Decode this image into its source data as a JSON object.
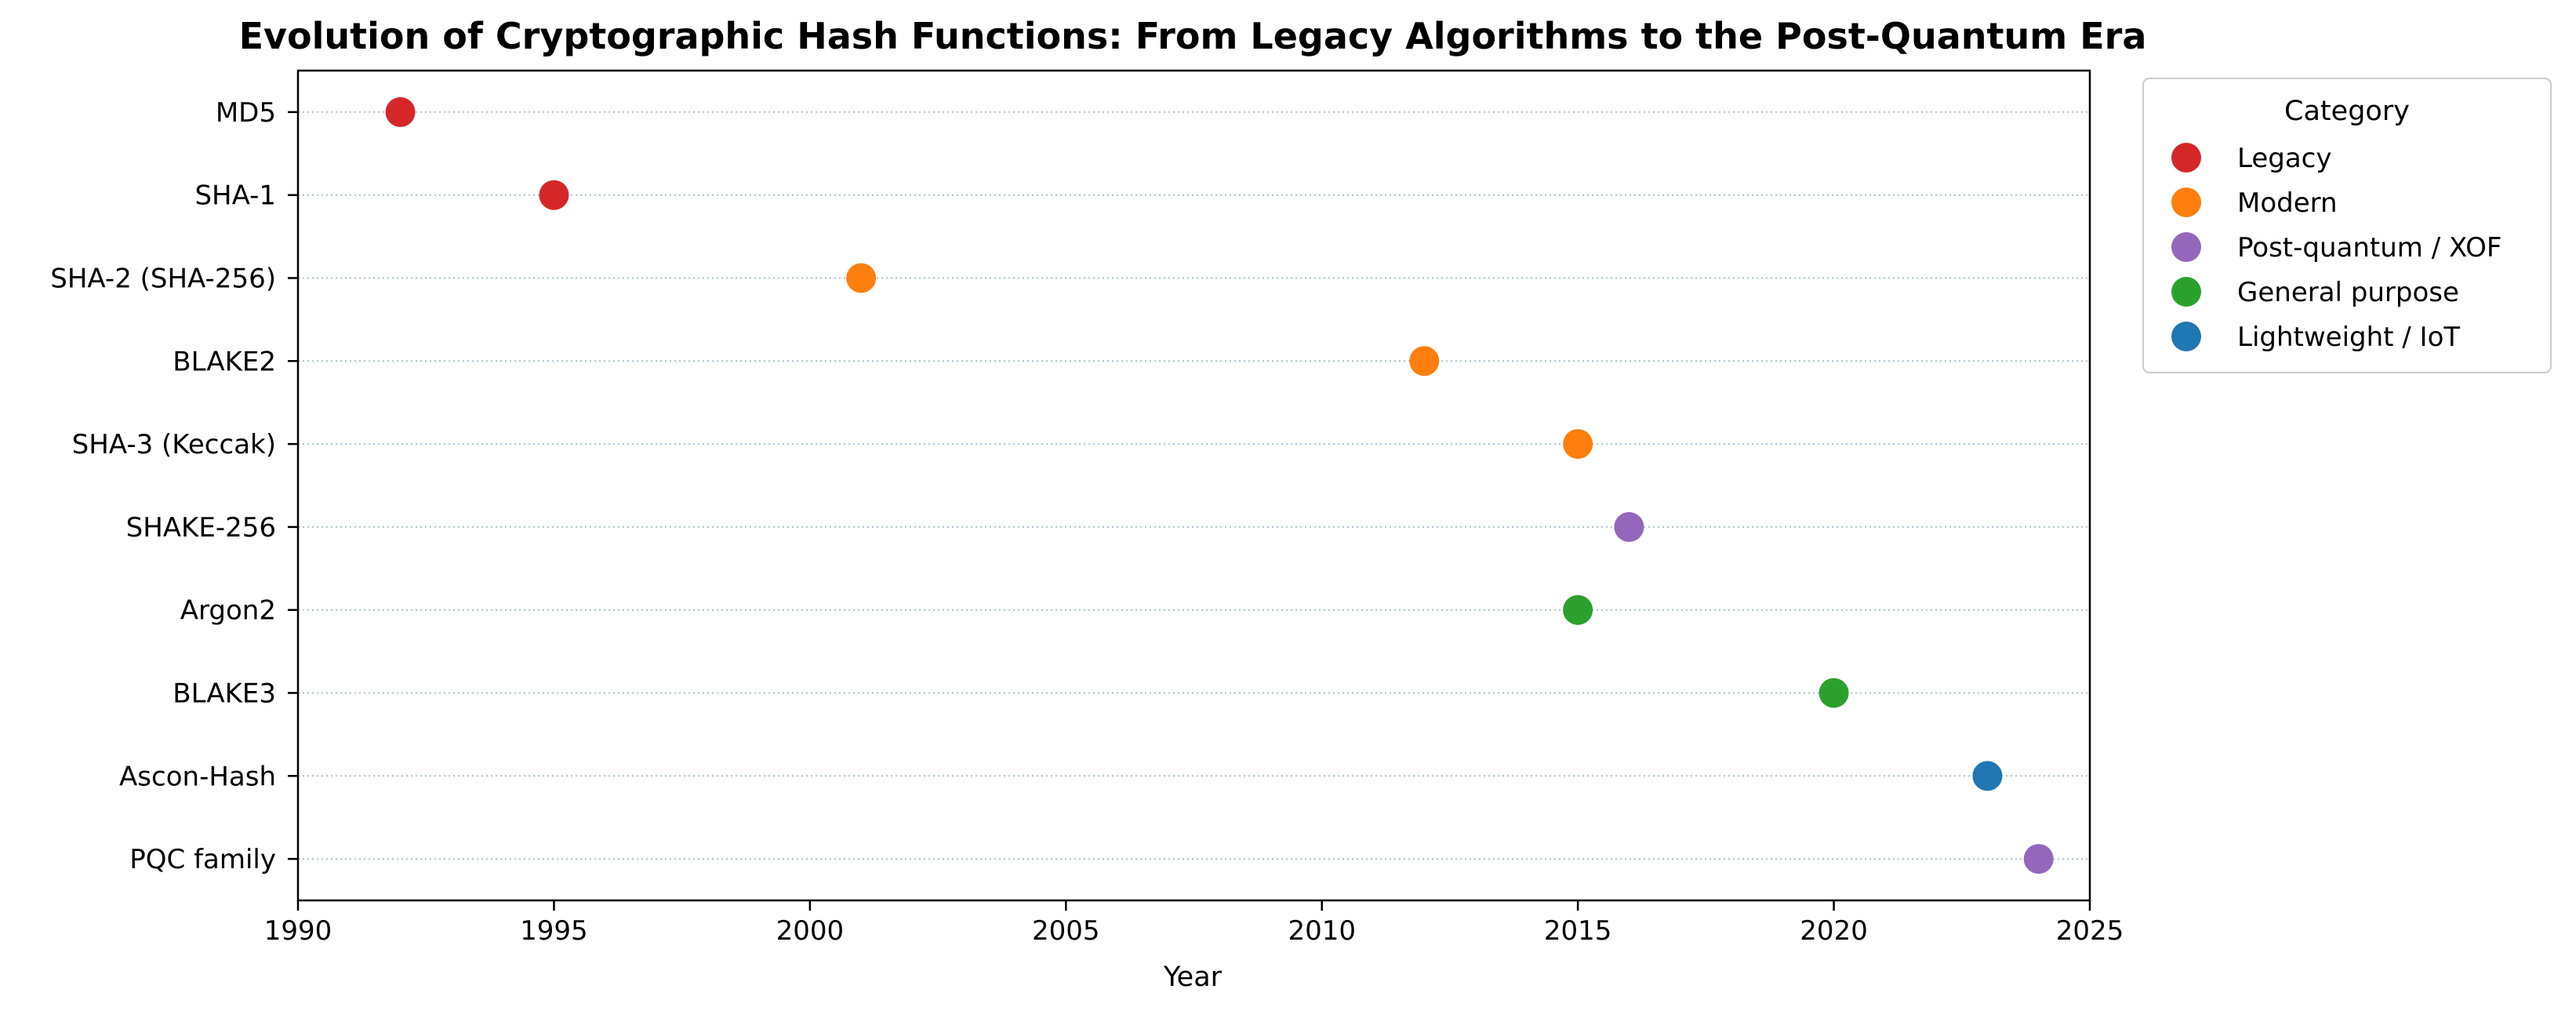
{
  "chart_data": {
    "type": "scatter",
    "title": "Evolution of Cryptographic Hash Functions: From Legacy Algorithms to the Post-Quantum Era",
    "xlabel": "Year",
    "ylabel": "",
    "xlim": [
      1990,
      2025
    ],
    "x_ticks": [
      1990,
      1995,
      2000,
      2005,
      2010,
      2015,
      2020,
      2025
    ],
    "y_grid": true,
    "x_grid": false,
    "legend": {
      "title": "Category",
      "placement": "outside-top-right"
    },
    "categories": [
      {
        "name": "Legacy",
        "color": "#d62728"
      },
      {
        "name": "Modern",
        "color": "#ff7f0e"
      },
      {
        "name": "Post-quantum / XOF",
        "color": "#9467bd"
      },
      {
        "name": "General purpose",
        "color": "#2ca02c"
      },
      {
        "name": "Lightweight / IoT",
        "color": "#1f77b4"
      }
    ],
    "points": [
      {
        "label": "MD5",
        "year": 1992,
        "category": "Legacy"
      },
      {
        "label": "SHA-1",
        "year": 1995,
        "category": "Legacy"
      },
      {
        "label": "SHA-2 (SHA-256)",
        "year": 2001,
        "category": "Modern"
      },
      {
        "label": "BLAKE2",
        "year": 2012,
        "category": "Modern"
      },
      {
        "label": "SHA-3 (Keccak)",
        "year": 2015,
        "category": "Modern"
      },
      {
        "label": "SHAKE-256",
        "year": 2016,
        "category": "Post-quantum / XOF"
      },
      {
        "label": "Argon2",
        "year": 2015,
        "category": "General purpose"
      },
      {
        "label": "BLAKE3",
        "year": 2020,
        "category": "General purpose"
      },
      {
        "label": "Ascon-Hash",
        "year": 2023,
        "category": "Lightweight / IoT"
      },
      {
        "label": "PQC family",
        "year": 2024,
        "category": "Post-quantum / XOF"
      }
    ]
  }
}
